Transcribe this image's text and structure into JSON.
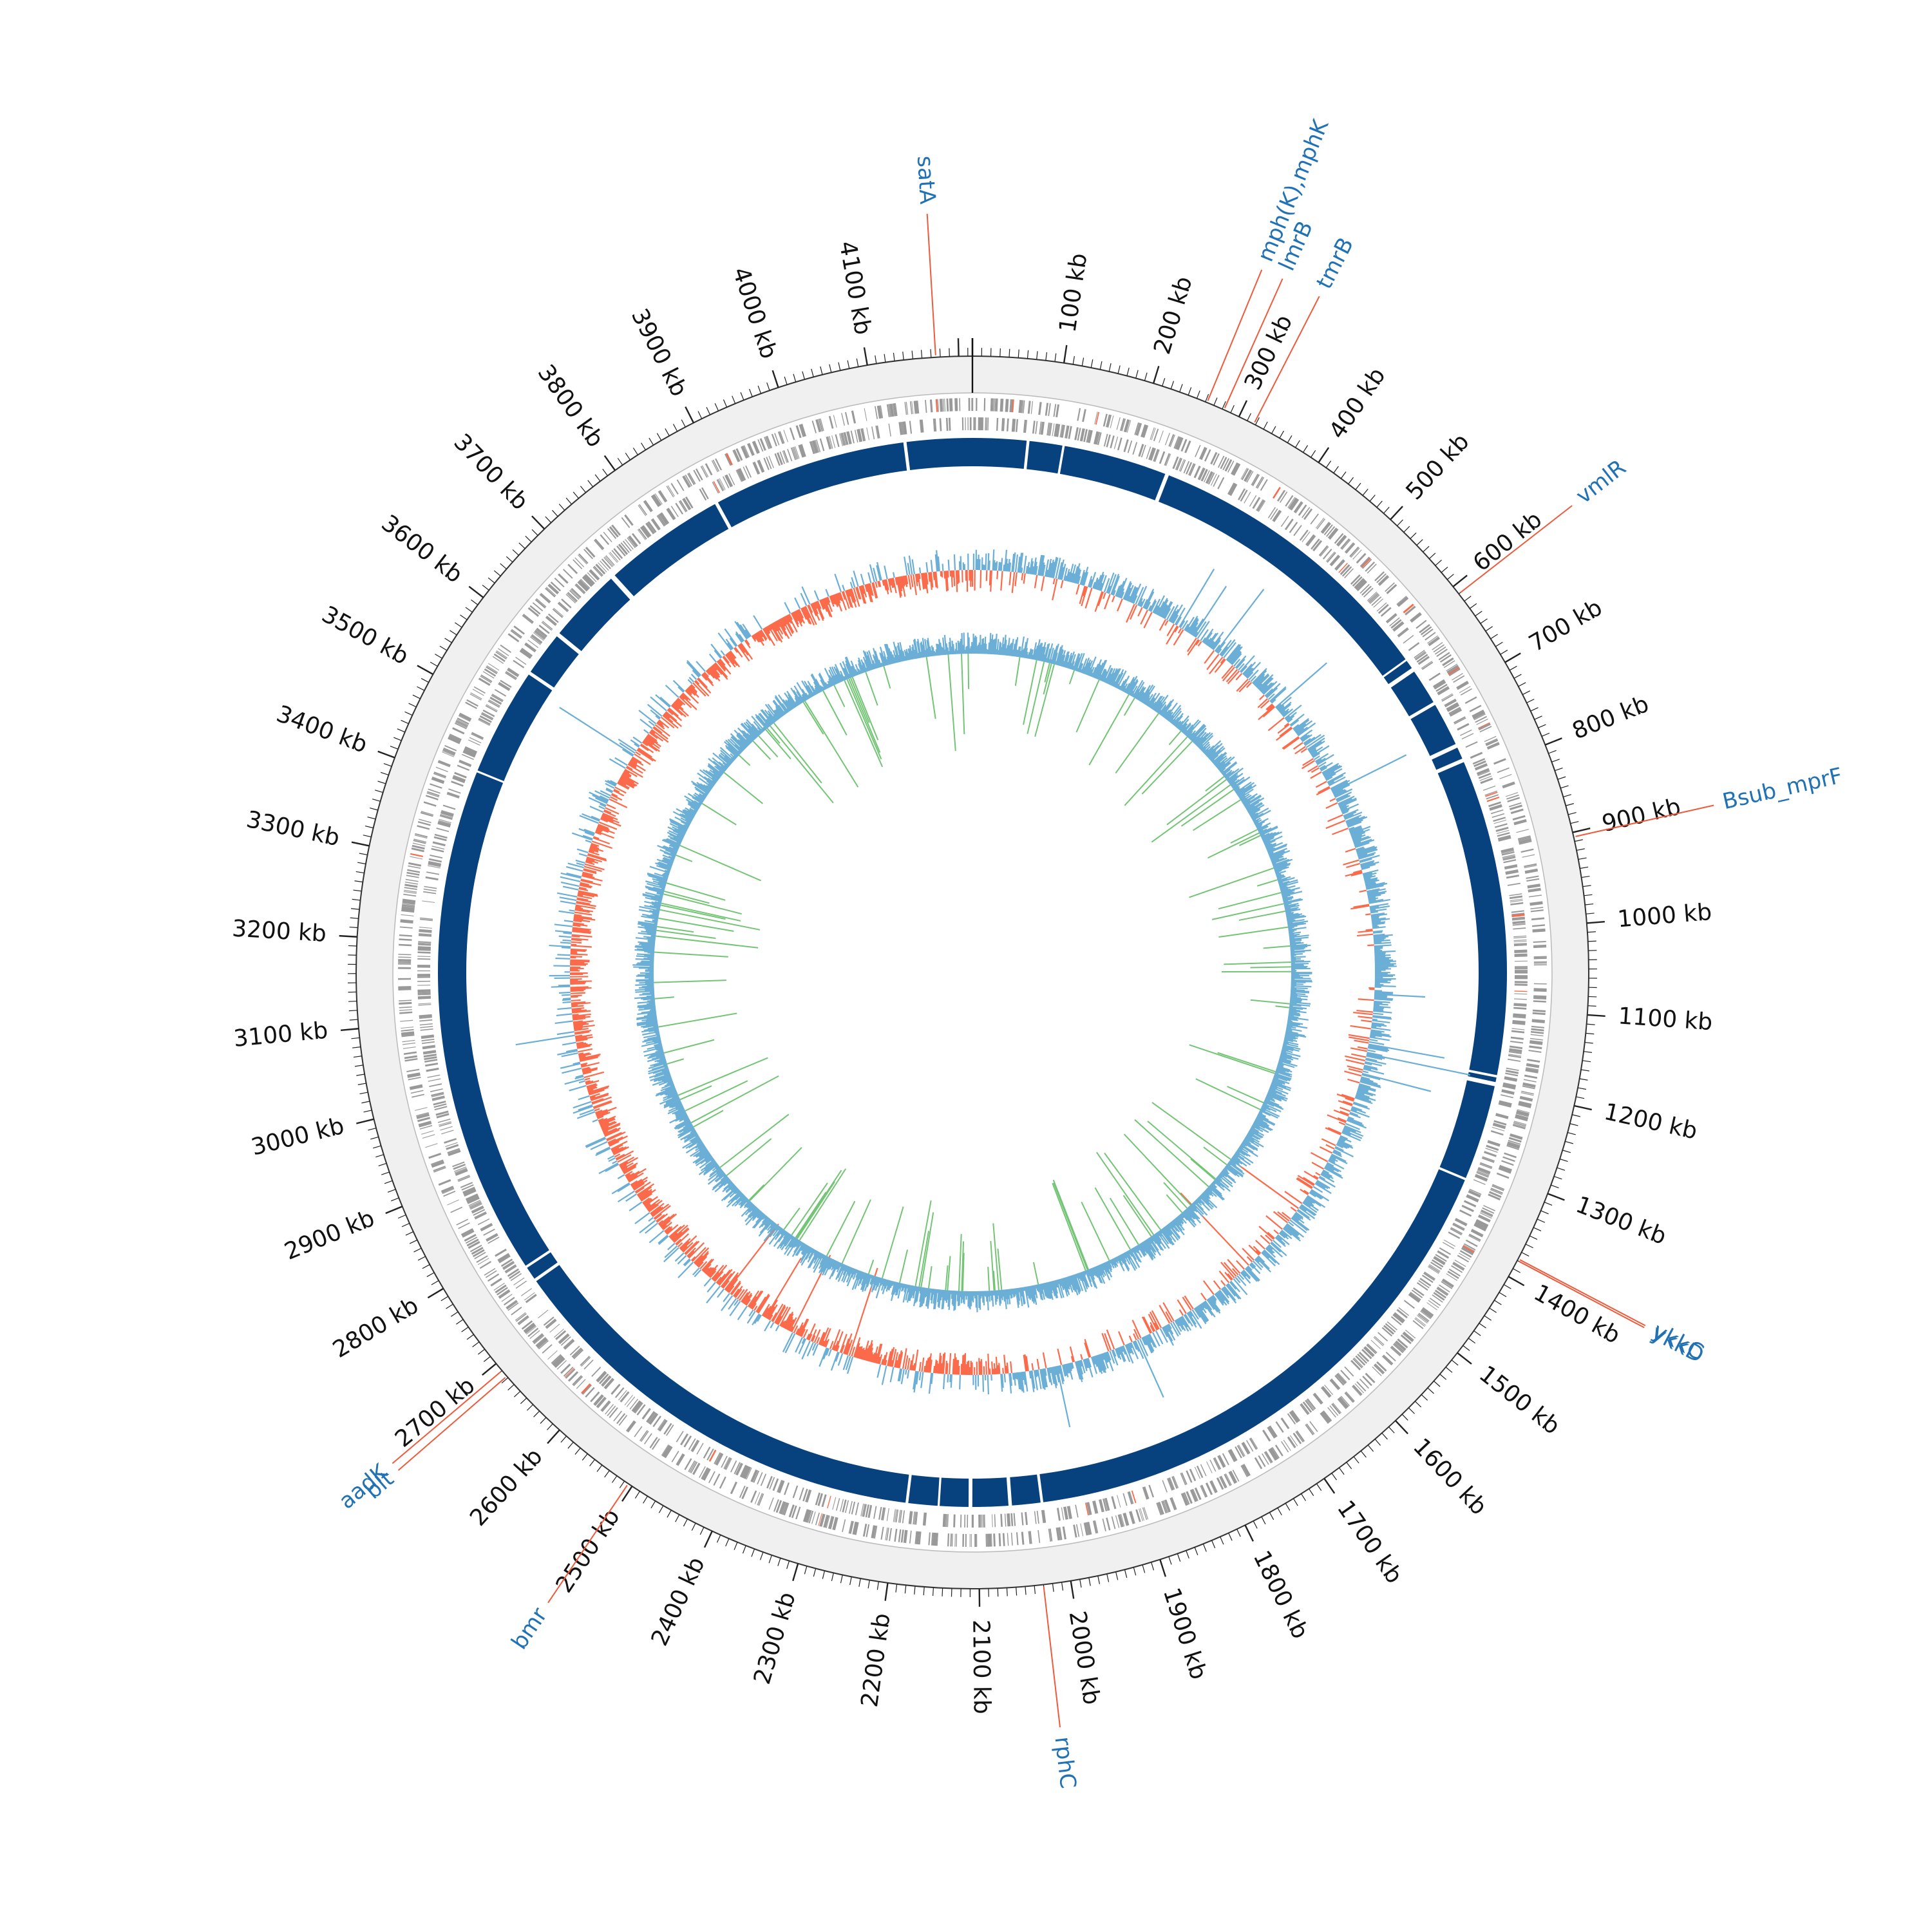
{
  "genome": {
    "length_kb": 4215,
    "tick_step_kb": 100,
    "tick_labels": [
      "100 kb",
      "200 kb",
      "300 kb",
      "400 kb",
      "500 kb",
      "600 kb",
      "700 kb",
      "800 kb",
      "900 kb",
      "1000 kb",
      "1100 kb",
      "1200 kb",
      "1300 kb",
      "1400 kb",
      "1500 kb",
      "1600 kb",
      "1700 kb",
      "1800 kb",
      "1900 kb",
      "2000 kb",
      "2100 kb",
      "2200 kb",
      "2300 kb",
      "2400 kb",
      "2500 kb",
      "2600 kb",
      "2700 kb",
      "2800 kb",
      "2900 kb",
      "3000 kb",
      "3100 kb",
      "3200 kb",
      "3300 kb",
      "3400 kb",
      "3500 kb",
      "3600 kb",
      "3700 kb",
      "3800 kb",
      "3900 kb",
      "4000 kb",
      "4100 kb"
    ]
  },
  "genes": [
    {
      "name": "satA",
      "kb": 4175
    },
    {
      "name": "mph(K),mphK",
      "kb": 262
    },
    {
      "name": "lmrB",
      "kb": 282
    },
    {
      "name": "tmrB",
      "kb": 318
    },
    {
      "name": "vmlR",
      "kb": 610
    },
    {
      "name": "Bsub_mprF",
      "kb": 905
    },
    {
      "name": "ykkC",
      "kb": 1378
    },
    {
      "name": "ykkD",
      "kb": 1380
    },
    {
      "name": "rphC",
      "kb": 2030
    },
    {
      "name": "bmr",
      "kb": 2505
    },
    {
      "name": "aadK",
      "kb": 2690
    },
    {
      "name": "blt",
      "kb": 2682
    }
  ],
  "colors": {
    "background_ring": "#f0f0f0",
    "gene_marks": "#999999",
    "blast_ring": "#08427e",
    "gc_content_positive": "#6baed6",
    "gc_content_negative": "#fb6a4a",
    "gc_skew": "#74c476",
    "gene_label": "#2171b5",
    "leader_line": "#ee5a3a"
  }
}
